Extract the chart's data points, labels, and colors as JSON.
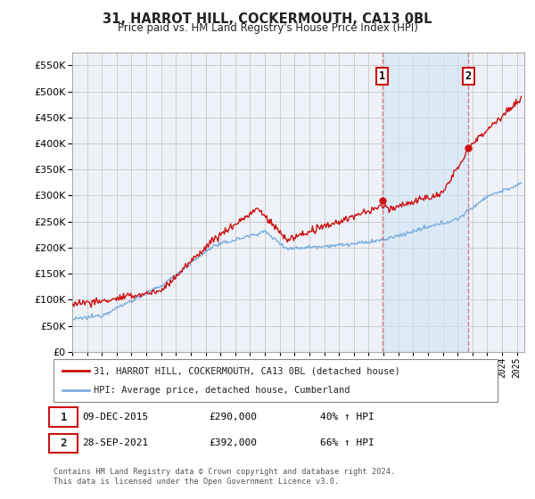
{
  "title": "31, HARROT HILL, COCKERMOUTH, CA13 0BL",
  "subtitle": "Price paid vs. HM Land Registry's House Price Index (HPI)",
  "ylim": [
    0,
    575000
  ],
  "yticks": [
    0,
    50000,
    100000,
    150000,
    200000,
    250000,
    300000,
    350000,
    400000,
    450000,
    500000,
    550000
  ],
  "xlim_start": 1995.0,
  "xlim_end": 2025.5,
  "hpi_color": "#7aaedd",
  "price_color": "#cc1111",
  "vline_color": "#dd3333",
  "vline_alpha": 0.6,
  "fill_color": "#d0e4f7",
  "fill_alpha": 0.5,
  "marker1_date": 2015.92,
  "marker1_price": 290000,
  "marker1_label": "1",
  "marker2_date": 2021.73,
  "marker2_price": 392000,
  "marker2_label": "2",
  "legend_house_label": "31, HARROT HILL, COCKERMOUTH, CA13 0BL (detached house)",
  "legend_hpi_label": "HPI: Average price, detached house, Cumberland",
  "annotation1_date": "09-DEC-2015",
  "annotation1_price": "£290,000",
  "annotation1_hpi": "40% ↑ HPI",
  "annotation2_date": "28-SEP-2021",
  "annotation2_price": "£392,000",
  "annotation2_hpi": "66% ↑ HPI",
  "footnote": "Contains HM Land Registry data © Crown copyright and database right 2024.\nThis data is licensed under the Open Government Licence v3.0.",
  "background_color": "#ffffff",
  "grid_color": "#cccccc",
  "plot_bg_color": "#eef2f8"
}
